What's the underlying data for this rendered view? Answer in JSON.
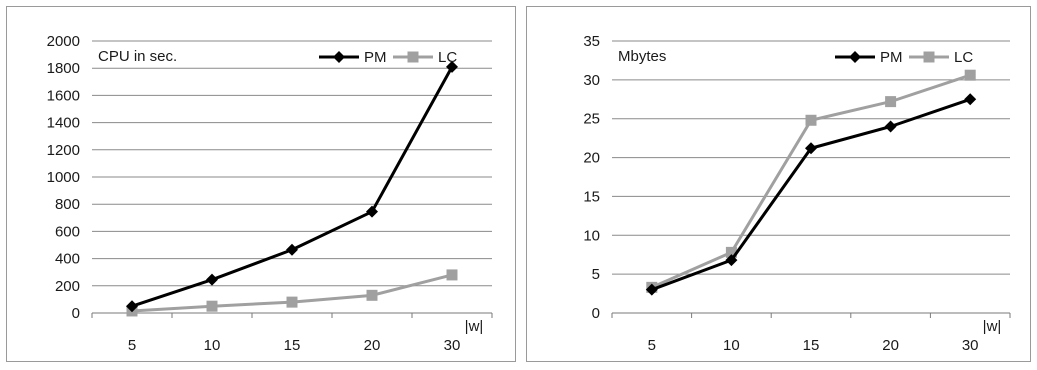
{
  "chart_data": [
    {
      "type": "line",
      "ylabel": "CPU in sec.",
      "xlabel": "|w|",
      "categories": [
        "5",
        "10",
        "15",
        "20",
        "30"
      ],
      "ylim": [
        0,
        2000
      ],
      "yticks": [
        0,
        200,
        400,
        600,
        800,
        1000,
        1200,
        1400,
        1600,
        1800,
        2000
      ],
      "grid": true,
      "legend_position": "top-right",
      "series": [
        {
          "name": "PM",
          "marker": "diamond",
          "color": "#000000",
          "values": [
            50,
            245,
            465,
            745,
            1810
          ]
        },
        {
          "name": "LC",
          "marker": "square",
          "color": "#a0a0a0",
          "values": [
            15,
            50,
            80,
            130,
            280
          ]
        }
      ]
    },
    {
      "type": "line",
      "ylabel": "Mbytes",
      "xlabel": "|w|",
      "categories": [
        "5",
        "10",
        "15",
        "20",
        "30"
      ],
      "ylim": [
        0,
        35
      ],
      "yticks": [
        0,
        5,
        10,
        15,
        20,
        25,
        30,
        35
      ],
      "grid": true,
      "legend_position": "top-right",
      "series": [
        {
          "name": "PM",
          "marker": "diamond",
          "color": "#000000",
          "values": [
            3,
            6.8,
            21.2,
            24,
            27.5
          ]
        },
        {
          "name": "LC",
          "marker": "square",
          "color": "#a0a0a0",
          "values": [
            3.3,
            7.8,
            24.8,
            27.2,
            30.6
          ]
        }
      ]
    }
  ]
}
